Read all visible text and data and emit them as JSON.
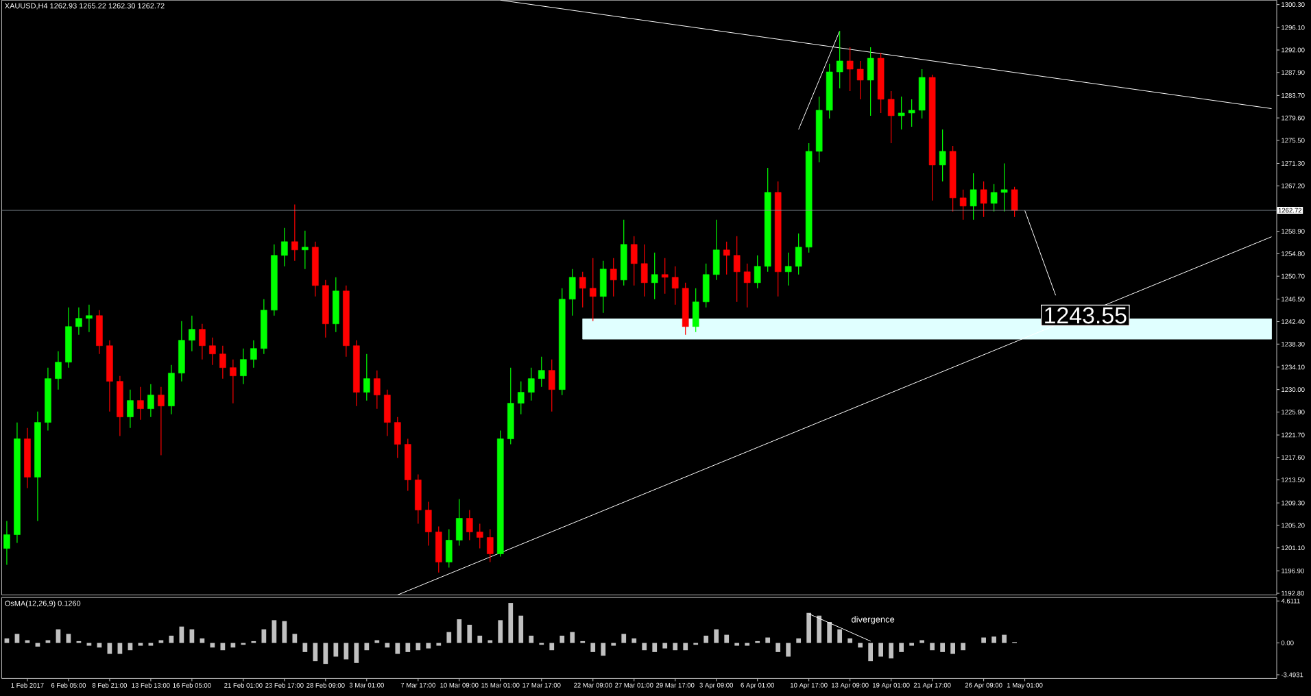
{
  "chart_data": [
    {
      "type": "candlestick",
      "title": "XAUUSD,H4  1262.93 1265.22 1262.30 1262.72",
      "categories": [
        null,
        null,
        null,
        null,
        null,
        null,
        null,
        null,
        null,
        null,
        null,
        null,
        null,
        null,
        null,
        null,
        null,
        null,
        null,
        null,
        null,
        null,
        null,
        null,
        null,
        null,
        null,
        null,
        null,
        null,
        null,
        null,
        null,
        null,
        null,
        null,
        null,
        null,
        null,
        null,
        null,
        null,
        null,
        null,
        null,
        null,
        null,
        null,
        null,
        null,
        null,
        null,
        null,
        null,
        null,
        null,
        null,
        null,
        null,
        null,
        null,
        null,
        null,
        null,
        null,
        null,
        null,
        null,
        null,
        null,
        null,
        null,
        null,
        null,
        null,
        null,
        null,
        null,
        null,
        null,
        null,
        null,
        null,
        null,
        null,
        null,
        null,
        null,
        null,
        null,
        null,
        null,
        null,
        null,
        null,
        null,
        null,
        null,
        null,
        null,
        null,
        null,
        null,
        null,
        null,
        null,
        null,
        null,
        null,
        null,
        null,
        null,
        null,
        null,
        null,
        null,
        null,
        null,
        null,
        null,
        null,
        null,
        null,
        null
      ],
      "ohlc": [
        [
          1201.0,
          1206.0,
          1198.0,
          1203.5
        ],
        [
          1203.5,
          1224.0,
          1202.0,
          1221.0
        ],
        [
          1221.0,
          1223.0,
          1212.0,
          1214.0
        ],
        [
          1214.0,
          1226.0,
          1206.0,
          1224.0
        ],
        [
          1224.0,
          1234.0,
          1222.5,
          1232.0
        ],
        [
          1232.0,
          1237.0,
          1230.0,
          1235.0
        ],
        [
          1235.0,
          1245.0,
          1234.0,
          1241.5
        ],
        [
          1241.5,
          1245.0,
          1240.0,
          1243.0
        ],
        [
          1243.0,
          1245.5,
          1240.5,
          1243.5
        ],
        [
          1243.5,
          1244.5,
          1236.5,
          1238.0
        ],
        [
          1238.0,
          1239.0,
          1226.0,
          1231.5
        ],
        [
          1231.5,
          1232.5,
          1221.5,
          1225.0
        ],
        [
          1225.0,
          1230.0,
          1223.0,
          1228.0
        ],
        [
          1228.0,
          1230.5,
          1224.5,
          1226.5
        ],
        [
          1226.5,
          1231.0,
          1225.0,
          1229.0
        ],
        [
          1229.0,
          1230.5,
          1218.0,
          1227.0
        ],
        [
          1227.0,
          1234.5,
          1225.5,
          1233.0
        ],
        [
          1233.0,
          1242.5,
          1231.5,
          1239.0
        ],
        [
          1239.0,
          1243.5,
          1237.0,
          1241.0
        ],
        [
          1241.0,
          1242.0,
          1235.5,
          1238.0
        ],
        [
          1238.0,
          1239.5,
          1234.5,
          1236.5
        ],
        [
          1236.5,
          1238.0,
          1232.0,
          1234.0
        ],
        [
          1234.0,
          1235.5,
          1227.5,
          1232.5
        ],
        [
          1232.5,
          1237.5,
          1231.0,
          1235.5
        ],
        [
          1235.5,
          1239.0,
          1234.0,
          1237.5
        ],
        [
          1237.5,
          1246.5,
          1236.5,
          1244.5
        ],
        [
          1244.5,
          1256.5,
          1243.5,
          1254.5
        ],
        [
          1254.5,
          1259.5,
          1252.5,
          1257.0
        ],
        [
          1257.0,
          1263.8,
          1253.5,
          1255.5
        ],
        [
          1255.5,
          1259.0,
          1252.0,
          1256.0
        ],
        [
          1256.0,
          1257.0,
          1247.0,
          1249.0
        ],
        [
          1249.0,
          1250.0,
          1239.5,
          1242.0
        ],
        [
          1242.0,
          1250.5,
          1240.5,
          1248.0
        ],
        [
          1248.0,
          1249.0,
          1236.0,
          1238.0
        ],
        [
          1238.0,
          1239.0,
          1227.0,
          1229.5
        ],
        [
          1229.5,
          1236.5,
          1228.0,
          1232.0
        ],
        [
          1232.0,
          1233.5,
          1226.5,
          1229.0
        ],
        [
          1229.0,
          1230.0,
          1221.5,
          1224.0
        ],
        [
          1224.0,
          1225.0,
          1217.5,
          1220.0
        ],
        [
          1220.0,
          1221.0,
          1211.5,
          1213.5
        ],
        [
          1213.5,
          1214.5,
          1205.5,
          1208.0
        ],
        [
          1208.0,
          1209.5,
          1201.5,
          1204.0
        ],
        [
          1204.0,
          1205.0,
          1196.6,
          1198.5
        ],
        [
          1198.5,
          1204.5,
          1197.5,
          1202.5
        ],
        [
          1202.5,
          1210.0,
          1201.5,
          1206.5
        ],
        [
          1206.5,
          1208.0,
          1202.5,
          1204.0
        ],
        [
          1204.0,
          1205.5,
          1201.0,
          1203.0
        ],
        [
          1203.0,
          1204.5,
          1198.5,
          1200.0
        ],
        [
          1200.0,
          1222.5,
          1199.5,
          1221.0
        ],
        [
          1221.0,
          1234.0,
          1220.0,
          1227.5
        ],
        [
          1227.5,
          1231.5,
          1225.5,
          1229.5
        ],
        [
          1229.5,
          1234.0,
          1228.0,
          1232.0
        ],
        [
          1232.0,
          1236.0,
          1230.5,
          1233.5
        ],
        [
          1233.5,
          1235.5,
          1226.0,
          1230.0
        ],
        [
          1230.0,
          1248.5,
          1229.0,
          1246.5
        ],
        [
          1246.5,
          1252.0,
          1243.5,
          1250.5
        ],
        [
          1250.5,
          1251.5,
          1245.0,
          1248.5
        ],
        [
          1248.5,
          1254.0,
          1242.5,
          1247.0
        ],
        [
          1247.0,
          1253.5,
          1244.0,
          1252.0
        ],
        [
          1252.0,
          1254.0,
          1247.0,
          1250.0
        ],
        [
          1250.0,
          1261.0,
          1249.0,
          1256.5
        ],
        [
          1256.5,
          1258.0,
          1249.0,
          1253.0
        ],
        [
          1253.0,
          1256.5,
          1247.0,
          1249.5
        ],
        [
          1249.5,
          1255.0,
          1246.5,
          1251.0
        ],
        [
          1251.0,
          1254.0,
          1247.5,
          1250.5
        ],
        [
          1250.5,
          1252.5,
          1245.5,
          1248.5
        ],
        [
          1248.5,
          1249.5,
          1240.0,
          1241.5
        ],
        [
          1241.5,
          1248.5,
          1240.5,
          1246.0
        ],
        [
          1246.0,
          1253.0,
          1245.0,
          1251.0
        ],
        [
          1251.0,
          1261.0,
          1250.0,
          1255.5
        ],
        [
          1255.5,
          1257.0,
          1251.0,
          1254.5
        ],
        [
          1254.5,
          1258.0,
          1246.0,
          1251.5
        ],
        [
          1251.5,
          1253.0,
          1245.0,
          1249.5
        ],
        [
          1249.5,
          1254.5,
          1248.5,
          1252.5
        ],
        [
          1252.5,
          1270.5,
          1251.5,
          1266.0
        ],
        [
          1266.0,
          1268.0,
          1247.0,
          1251.5
        ],
        [
          1251.5,
          1255.0,
          1249.0,
          1252.5
        ],
        [
          1252.5,
          1258.5,
          1251.0,
          1256.0
        ],
        [
          1256.0,
          1275.0,
          1255.0,
          1273.5
        ],
        [
          1273.5,
          1283.5,
          1271.5,
          1281.0
        ],
        [
          1281.0,
          1289.5,
          1279.5,
          1288.0
        ],
        [
          1288.0,
          1295.5,
          1285.0,
          1290.0
        ],
        [
          1290.0,
          1292.5,
          1284.5,
          1288.5
        ],
        [
          1288.5,
          1290.0,
          1283.0,
          1286.5
        ],
        [
          1286.5,
          1292.5,
          1280.0,
          1290.5
        ],
        [
          1290.5,
          1291.5,
          1280.5,
          1283.0
        ],
        [
          1283.0,
          1284.5,
          1275.0,
          1280.0
        ],
        [
          1280.0,
          1283.5,
          1277.5,
          1280.5
        ],
        [
          1280.5,
          1283.0,
          1278.0,
          1281.0
        ],
        [
          1281.0,
          1288.5,
          1279.5,
          1287.0
        ],
        [
          1287.0,
          1287.5,
          1264.5,
          1271.0
        ],
        [
          1271.0,
          1277.5,
          1268.0,
          1273.5
        ],
        [
          1273.5,
          1274.5,
          1262.5,
          1265.0
        ],
        [
          1265.0,
          1266.5,
          1261.0,
          1263.5
        ],
        [
          1263.5,
          1269.5,
          1261.0,
          1266.5
        ],
        [
          1266.5,
          1268.0,
          1261.5,
          1264.0
        ],
        [
          1264.0,
          1267.5,
          1262.5,
          1266.0
        ],
        [
          1266.0,
          1271.3,
          1262.5,
          1266.5
        ],
        [
          1266.5,
          1267.0,
          1261.5,
          1262.72
        ],
        null,
        null,
        null,
        null,
        null,
        null,
        null,
        null,
        null,
        null,
        null,
        null,
        null,
        null,
        null,
        null,
        null,
        null,
        null,
        null,
        null,
        null,
        null,
        null,
        null
      ],
      "colors": [
        "#00ff00",
        "#00ff00",
        "#ff0000",
        "#00ff00",
        "#00ff00",
        "#00ff00",
        "#00ff00",
        "#00ff00",
        "#00ff00",
        "#ff0000",
        "#ff0000",
        "#ff0000",
        "#00ff00",
        "#ff0000",
        "#00ff00",
        "#ff0000",
        "#00ff00",
        "#00ff00",
        "#00ff00",
        "#ff0000",
        "#ff0000",
        "#ff0000",
        "#ff0000",
        "#00ff00",
        "#00ff00",
        "#00ff00",
        "#00ff00",
        "#00ff00",
        "#ff0000",
        "#00ff00",
        "#ff0000",
        "#ff0000",
        "#00ff00",
        "#ff0000",
        "#ff0000",
        "#00ff00",
        "#ff0000",
        "#ff0000",
        "#ff0000",
        "#ff0000",
        "#ff0000",
        "#ff0000",
        "#ff0000",
        "#00ff00",
        "#00ff00",
        "#ff0000",
        "#ff0000",
        "#ff0000",
        "#00ff00",
        "#00ff00",
        "#00ff00",
        "#00ff00",
        "#00ff00",
        "#ff0000",
        "#00ff00",
        "#00ff00",
        "#ff0000",
        "#ff0000",
        "#00ff00",
        "#ff0000",
        "#00ff00",
        "#ff0000",
        "#ff0000",
        "#00ff00",
        "#ff0000",
        "#ff0000",
        "#ff0000",
        "#00ff00",
        "#00ff00",
        "#00ff00",
        "#ff0000",
        "#ff0000",
        "#ff0000",
        "#00ff00",
        "#00ff00",
        "#ff0000",
        "#00ff00",
        "#00ff00",
        "#00ff00",
        "#00ff00",
        "#00ff00",
        "#00ff00",
        "#ff0000",
        "#ff0000",
        "#00ff00",
        "#ff0000",
        "#ff0000",
        "#00ff00",
        "#00ff00",
        "#00ff00",
        "#ff0000",
        "#00ff00",
        "#ff0000",
        "#ff0000",
        "#00ff00",
        "#ff0000",
        "#00ff00",
        "#00ff00",
        "#ff0000",
        null,
        null,
        null,
        null,
        null,
        null,
        null,
        null,
        null,
        null,
        null,
        null,
        null,
        null,
        null,
        null,
        null,
        null,
        null,
        null,
        null,
        null,
        null,
        null,
        null
      ],
      "series": [
        {
          "type": "line",
          "color": "#e0ffff",
          "upper": [
            null,
            null,
            null,
            null,
            null,
            null,
            null,
            null,
            null,
            null,
            null,
            null,
            null,
            null,
            null,
            null,
            null,
            null,
            null,
            null,
            null,
            null,
            null,
            null,
            null,
            null,
            null,
            null,
            null,
            null,
            null,
            null,
            null,
            null,
            null,
            null,
            null,
            null,
            null,
            null,
            null,
            null,
            null,
            null,
            null,
            null,
            null,
            null,
            null,
            null,
            null,
            null,
            null,
            null,
            null,
            null,
            1242.9,
            null,
            null,
            null,
            null,
            null,
            null,
            null,
            null,
            null,
            null,
            null,
            null,
            null,
            null,
            null,
            null,
            null,
            null,
            null,
            null,
            null,
            null,
            null,
            null,
            null,
            null,
            null,
            null,
            null,
            null,
            null,
            null,
            null,
            null,
            null,
            null,
            null,
            null,
            null,
            null,
            null,
            null,
            null,
            null,
            null,
            null,
            null,
            null,
            null,
            null,
            null,
            null,
            null,
            null,
            null,
            null,
            null,
            null,
            null,
            null,
            null,
            null,
            null,
            null,
            null,
            null,
            1242.9
          ],
          "values": [
            null,
            null,
            null,
            null,
            null,
            null,
            null,
            null,
            null,
            null,
            null,
            null,
            null,
            null,
            null,
            null,
            null,
            null,
            null,
            null,
            null,
            null,
            null,
            null,
            null,
            null,
            null,
            null,
            null,
            null,
            null,
            null,
            null,
            null,
            null,
            null,
            null,
            null,
            null,
            null,
            null,
            null,
            null,
            null,
            null,
            null,
            null,
            null,
            null,
            null,
            null,
            null,
            null,
            null,
            null,
            null,
            1242.9,
            null,
            null,
            null,
            null,
            null,
            null,
            null,
            null,
            null,
            null,
            null,
            null,
            null,
            null,
            null,
            null,
            null,
            null,
            null,
            null,
            null,
            null,
            null,
            null,
            null,
            null,
            null,
            null,
            null,
            null,
            null,
            null,
            null,
            null,
            null,
            null,
            null,
            null,
            null,
            null,
            null,
            null,
            null,
            null,
            null,
            null,
            null,
            null,
            null,
            null,
            null,
            null,
            null,
            null,
            null,
            null,
            null,
            null,
            null,
            null,
            null,
            null,
            null,
            null,
            null,
            null,
            1242.9
          ],
          "lower": [
            null,
            null,
            null,
            null,
            null,
            null,
            null,
            null,
            null,
            null,
            null,
            null,
            null,
            null,
            null,
            null,
            null,
            null,
            null,
            null,
            null,
            null,
            null,
            null,
            null,
            null,
            null,
            null,
            null,
            null,
            null,
            null,
            null,
            null,
            null,
            null,
            null,
            null,
            null,
            null,
            null,
            null,
            null,
            null,
            null,
            null,
            null,
            null,
            null,
            null,
            null,
            null,
            null,
            null,
            null,
            null,
            1239.2,
            null,
            null,
            null,
            null,
            null,
            null,
            null,
            null,
            null,
            null,
            null,
            null,
            null,
            null,
            null,
            null,
            null,
            null,
            null,
            null,
            null,
            null,
            null,
            null,
            null,
            null,
            null,
            null,
            null,
            null,
            null,
            null,
            null,
            null,
            null,
            null,
            null,
            null,
            null,
            null,
            null,
            null,
            null,
            null,
            null,
            null,
            null,
            null,
            null,
            null,
            null,
            null,
            null,
            null,
            null,
            null,
            null,
            null,
            null,
            null,
            null,
            null,
            null,
            null,
            null,
            null,
            1239.2
          ]
        },
        {
          "type": "line",
          "color": "#ffffff",
          "values": [
            null,
            null,
            null,
            null,
            null,
            null,
            null,
            null,
            null,
            null,
            null,
            null,
            null,
            null,
            null,
            null,
            null,
            null,
            null,
            null,
            null,
            null,
            null,
            null,
            null,
            null,
            null,
            null,
            null,
            null,
            null,
            null,
            null,
            null,
            null,
            null,
            null,
            null,
            null,
            null,
            null,
            null,
            null,
            null,
            null,
            null,
            null,
            null,
            1301.1,
            null,
            null,
            null,
            null,
            null,
            null,
            null,
            null,
            null,
            null,
            null,
            null,
            null,
            null,
            null,
            null,
            null,
            null,
            null,
            null,
            null,
            null,
            null,
            null,
            null,
            null,
            null,
            null,
            null,
            null,
            null,
            null,
            null,
            null,
            null,
            null,
            null,
            null,
            null,
            null,
            null,
            null,
            null,
            null,
            null,
            null,
            null,
            null,
            null,
            null,
            null,
            null,
            null,
            null,
            null,
            null,
            null,
            null,
            null,
            null,
            null,
            null,
            null,
            null,
            null,
            null,
            null,
            null,
            null,
            null,
            null,
            null,
            null,
            null,
            1281.3
          ]
        },
        {
          "type": "line",
          "color": "#ffffff",
          "values": [
            null,
            null,
            null,
            null,
            null,
            null,
            null,
            null,
            null,
            null,
            null,
            null,
            null,
            null,
            null,
            null,
            null,
            null,
            null,
            null,
            null,
            null,
            null,
            null,
            null,
            null,
            null,
            null,
            null,
            null,
            null,
            null,
            null,
            null,
            null,
            null,
            null,
            null,
            1192.5,
            null,
            null,
            null,
            null,
            null,
            null,
            null,
            null,
            null,
            null,
            null,
            null,
            null,
            null,
            null,
            null,
            null,
            null,
            null,
            null,
            null,
            null,
            null,
            null,
            null,
            null,
            null,
            null,
            null,
            null,
            null,
            null,
            null,
            null,
            null,
            null,
            null,
            null,
            null,
            null,
            null,
            null,
            null,
            null,
            null,
            null,
            null,
            null,
            null,
            null,
            null,
            null,
            null,
            null,
            null,
            null,
            null,
            null,
            null,
            null,
            null,
            null,
            null,
            null,
            null,
            null,
            null,
            null,
            null,
            null,
            null,
            null,
            null,
            null,
            null,
            null,
            null,
            null,
            null,
            null,
            null,
            null,
            null,
            null,
            1257.9
          ]
        },
        {
          "type": "line",
          "color": "#ffffff",
          "values": [
            null,
            null,
            null,
            null,
            null,
            null,
            null,
            null,
            null,
            null,
            null,
            null,
            null,
            null,
            null,
            null,
            null,
            null,
            null,
            null,
            null,
            null,
            null,
            null,
            null,
            null,
            null,
            null,
            null,
            null,
            null,
            null,
            null,
            null,
            null,
            null,
            null,
            null,
            null,
            null,
            null,
            null,
            null,
            null,
            null,
            null,
            null,
            null,
            null,
            null,
            null,
            null,
            null,
            null,
            null,
            null,
            null,
            null,
            null,
            null,
            null,
            null,
            null,
            null,
            null,
            null,
            null,
            null,
            null,
            null,
            null,
            null,
            null,
            null,
            null,
            null,
            null,
            1277.5,
            null,
            null,
            null,
            1295.5,
            null,
            null,
            null,
            null,
            null,
            null,
            null,
            null,
            null,
            null,
            null,
            null,
            null,
            null,
            null,
            null,
            null,
            null,
            null,
            null,
            null,
            null,
            null,
            null,
            null,
            null,
            null,
            null,
            null,
            null,
            null,
            null,
            null,
            null,
            null,
            null,
            null,
            null,
            null,
            null,
            null,
            null
          ]
        },
        {
          "type": "line",
          "color": "#ffffff",
          "values": [
            null,
            null,
            null,
            null,
            null,
            null,
            null,
            null,
            null,
            null,
            null,
            null,
            null,
            null,
            null,
            null,
            null,
            null,
            null,
            null,
            null,
            null,
            null,
            null,
            null,
            null,
            null,
            null,
            null,
            null,
            null,
            null,
            null,
            null,
            null,
            null,
            null,
            null,
            null,
            null,
            null,
            null,
            null,
            null,
            null,
            null,
            null,
            null,
            null,
            null,
            null,
            null,
            null,
            null,
            null,
            null,
            null,
            null,
            null,
            null,
            null,
            null,
            null,
            null,
            null,
            null,
            null,
            null,
            null,
            null,
            null,
            null,
            null,
            null,
            null,
            null,
            null,
            null,
            null,
            null,
            null,
            null,
            null,
            null,
            null,
            null,
            null,
            null,
            null,
            null,
            null,
            null,
            null,
            null,
            null,
            null,
            null,
            null,
            null,
            1262.7,
            null,
            null,
            1247.2,
            null,
            null,
            null,
            null,
            null,
            null,
            null,
            null,
            null,
            null,
            null,
            null,
            null,
            null,
            null,
            null,
            null,
            null,
            null,
            null,
            null
          ]
        }
      ],
      "ref_lines": [
        {
          "axis": "y",
          "value": 1262.72,
          "label": "1262.72",
          "color": "#8c96a0"
        }
      ],
      "annotations": [
        "1243.55"
      ],
      "ylim": [
        1192.5,
        1301.1
      ],
      "yticks": [
        {
          "value": 1192.8,
          "label": "1192.80"
        },
        {
          "value": 1196.9,
          "label": "1196.90"
        },
        {
          "value": 1201.1,
          "label": "1201.10"
        },
        {
          "value": 1205.2,
          "label": "1205.20"
        },
        {
          "value": 1209.3,
          "label": "1209.30"
        },
        {
          "value": 1213.5,
          "label": "1213.50"
        },
        {
          "value": 1217.6,
          "label": "1217.60"
        },
        {
          "value": 1221.7,
          "label": "1221.70"
        },
        {
          "value": 1225.9,
          "label": "1225.90"
        },
        {
          "value": 1230.0,
          "label": "1230.00"
        },
        {
          "value": 1234.1,
          "label": "1234.10"
        },
        {
          "value": 1238.3,
          "label": "1238.30"
        },
        {
          "value": 1242.4,
          "label": "1242.40"
        },
        {
          "value": 1246.5,
          "label": "1246.50"
        },
        {
          "value": 1250.7,
          "label": "1250.70"
        },
        {
          "value": 1254.8,
          "label": "1254.80"
        },
        {
          "value": 1258.9,
          "label": "1258.90"
        },
        {
          "value": 1267.2,
          "label": "1267.20"
        },
        {
          "value": 1271.3,
          "label": "1271.30"
        },
        {
          "value": 1275.5,
          "label": "1275.50"
        },
        {
          "value": 1279.6,
          "label": "1279.60"
        },
        {
          "value": 1283.7,
          "label": "1283.70"
        },
        {
          "value": 1287.9,
          "label": "1287.90"
        },
        {
          "value": 1292.0,
          "label": "1292.00"
        },
        {
          "value": 1296.1,
          "label": "1296.10"
        },
        {
          "value": 1300.3,
          "label": "1300.30"
        }
      ],
      "tick_labels": "y"
    },
    {
      "type": "bar",
      "title": "OsMA(12,26,9) 0.1260",
      "categories": [
        null,
        null,
        "1 Feb 2017",
        null,
        null,
        null,
        "6 Feb 05:00",
        null,
        null,
        null,
        "8 Feb 21:00",
        null,
        null,
        null,
        "13 Feb 13:00",
        null,
        null,
        null,
        "16 Feb 05:00",
        null,
        null,
        null,
        null,
        "21 Feb 01:00",
        null,
        null,
        null,
        "23 Feb 17:00",
        null,
        null,
        null,
        "28 Feb 09:00",
        null,
        null,
        null,
        "3 Mar 01:00",
        null,
        null,
        null,
        null,
        "7 Mar 17:00",
        null,
        null,
        null,
        "10 Mar 09:00",
        null,
        null,
        null,
        "15 Mar 01:00",
        null,
        null,
        null,
        "17 Mar 17:00",
        null,
        null,
        null,
        null,
        "22 Mar 09:00",
        null,
        null,
        null,
        "27 Mar 01:00",
        null,
        null,
        null,
        "29 Mar 17:00",
        null,
        null,
        null,
        "3 Apr 09:00",
        null,
        null,
        null,
        "6 Apr 01:00",
        null,
        null,
        null,
        null,
        "10 Apr 17:00",
        null,
        null,
        null,
        "13 Apr 09:00",
        null,
        null,
        null,
        "19 Apr 01:00",
        null,
        null,
        null,
        "21 Apr 17:00",
        null,
        null,
        null,
        null,
        "26 Apr 09:00",
        null,
        null,
        null,
        "1 May 01:00",
        null,
        null,
        null,
        null,
        null,
        null,
        null,
        null,
        null,
        null,
        null,
        null,
        null,
        null,
        null,
        null,
        null,
        null,
        null,
        null,
        null,
        null,
        null,
        null
      ],
      "series": [
        {
          "type": "bar",
          "color": "#c0c0c0",
          "values": [
            0.5,
            1.0,
            0.3,
            -0.4,
            0.3,
            1.5,
            1.0,
            0.2,
            -0.3,
            -0.5,
            -1.2,
            -1.2,
            -0.8,
            -0.3,
            -0.3,
            0.3,
            0.8,
            1.8,
            1.5,
            0.5,
            -0.5,
            -0.8,
            -0.5,
            -0.2,
            0.2,
            1.5,
            2.5,
            2.4,
            1.0,
            -1.0,
            -2.0,
            -2.3,
            -1.5,
            -1.8,
            -2.2,
            -0.8,
            0.3,
            -0.5,
            -1.2,
            -1.0,
            -0.8,
            -0.6,
            -0.3,
            1.2,
            2.6,
            2.0,
            0.8,
            0.3,
            2.5,
            4.4,
            3.0,
            0.8,
            -0.2,
            -0.8,
            0.8,
            1.2,
            0.2,
            -1.0,
            -1.4,
            -0.3,
            1.0,
            0.5,
            -0.8,
            -1.0,
            -0.6,
            -0.8,
            -0.8,
            -0.2,
            0.8,
            1.5,
            0.9,
            -0.3,
            -0.3,
            0.2,
            0.6,
            -1.0,
            -1.5,
            0.5,
            3.3,
            3.0,
            2.3,
            1.5,
            0.5,
            -0.5,
            -2.0,
            -1.5,
            -1.7,
            -1.0,
            -0.3,
            0.3,
            -0.8,
            -1.0,
            -1.2,
            -0.8,
            0.0,
            0.6,
            0.7,
            0.9,
            0.1,
            null,
            null,
            null,
            null,
            null,
            null,
            null,
            null,
            null,
            null,
            null,
            null,
            null,
            null,
            null,
            null,
            null,
            null,
            null,
            null,
            null,
            null,
            null,
            null,
            null
          ]
        },
        {
          "type": "line",
          "color": "#ffffff",
          "values": [
            null,
            null,
            null,
            null,
            null,
            null,
            null,
            null,
            null,
            null,
            null,
            null,
            null,
            null,
            null,
            null,
            null,
            null,
            null,
            null,
            null,
            null,
            null,
            null,
            null,
            null,
            null,
            null,
            null,
            null,
            null,
            null,
            null,
            null,
            null,
            null,
            null,
            null,
            null,
            null,
            null,
            null,
            null,
            null,
            null,
            null,
            null,
            null,
            null,
            null,
            null,
            null,
            null,
            null,
            null,
            null,
            null,
            null,
            null,
            null,
            null,
            null,
            null,
            null,
            null,
            null,
            null,
            null,
            null,
            null,
            null,
            null,
            null,
            null,
            null,
            null,
            null,
            null,
            3.2,
            null,
            null,
            null,
            null,
            null,
            0.2,
            null,
            null,
            null,
            null,
            null,
            null,
            null,
            null,
            null,
            null,
            null,
            null,
            null,
            null,
            null,
            null,
            null,
            null,
            null,
            null,
            null,
            null,
            null,
            null,
            null,
            null,
            null,
            null,
            null,
            null,
            null,
            null,
            null,
            null,
            null,
            null,
            null,
            null,
            null
          ]
        }
      ],
      "annotations": [
        "divergence"
      ],
      "ylim": [
        -3.9,
        5.0
      ],
      "yticks": [
        -3.4931,
        {
          "value": 0,
          "label": "0.00"
        },
        4.6111
      ]
    }
  ]
}
